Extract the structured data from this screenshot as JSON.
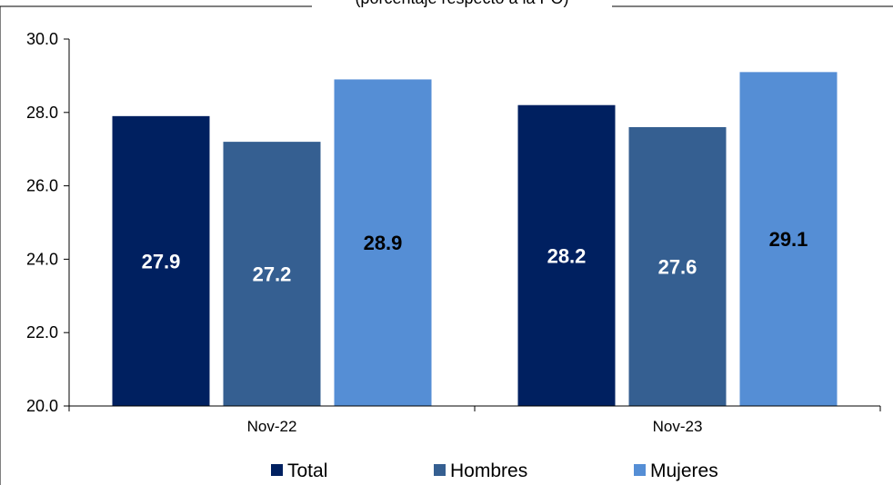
{
  "chart_data": {
    "type": "bar",
    "title": "(porcentaje respecto a la PO)",
    "categories": [
      "Nov-22",
      "Nov-23"
    ],
    "series": [
      {
        "name": "Total",
        "values": [
          27.9,
          28.2
        ],
        "color": "#002060",
        "label_color": "#ffffff"
      },
      {
        "name": "Hombres",
        "values": [
          27.2,
          27.6
        ],
        "color": "#355F91",
        "label_color": "#ffffff"
      },
      {
        "name": "Mujeres",
        "values": [
          28.9,
          29.1
        ],
        "color": "#558ED5",
        "label_color": "#000000"
      }
    ],
    "ylim": [
      20.0,
      30.0
    ],
    "yticks": [
      "20.0",
      "22.0",
      "24.0",
      "26.0",
      "28.0",
      "30.0"
    ],
    "xlabel": "",
    "ylabel": "",
    "grid": false,
    "legend": "bottom"
  }
}
